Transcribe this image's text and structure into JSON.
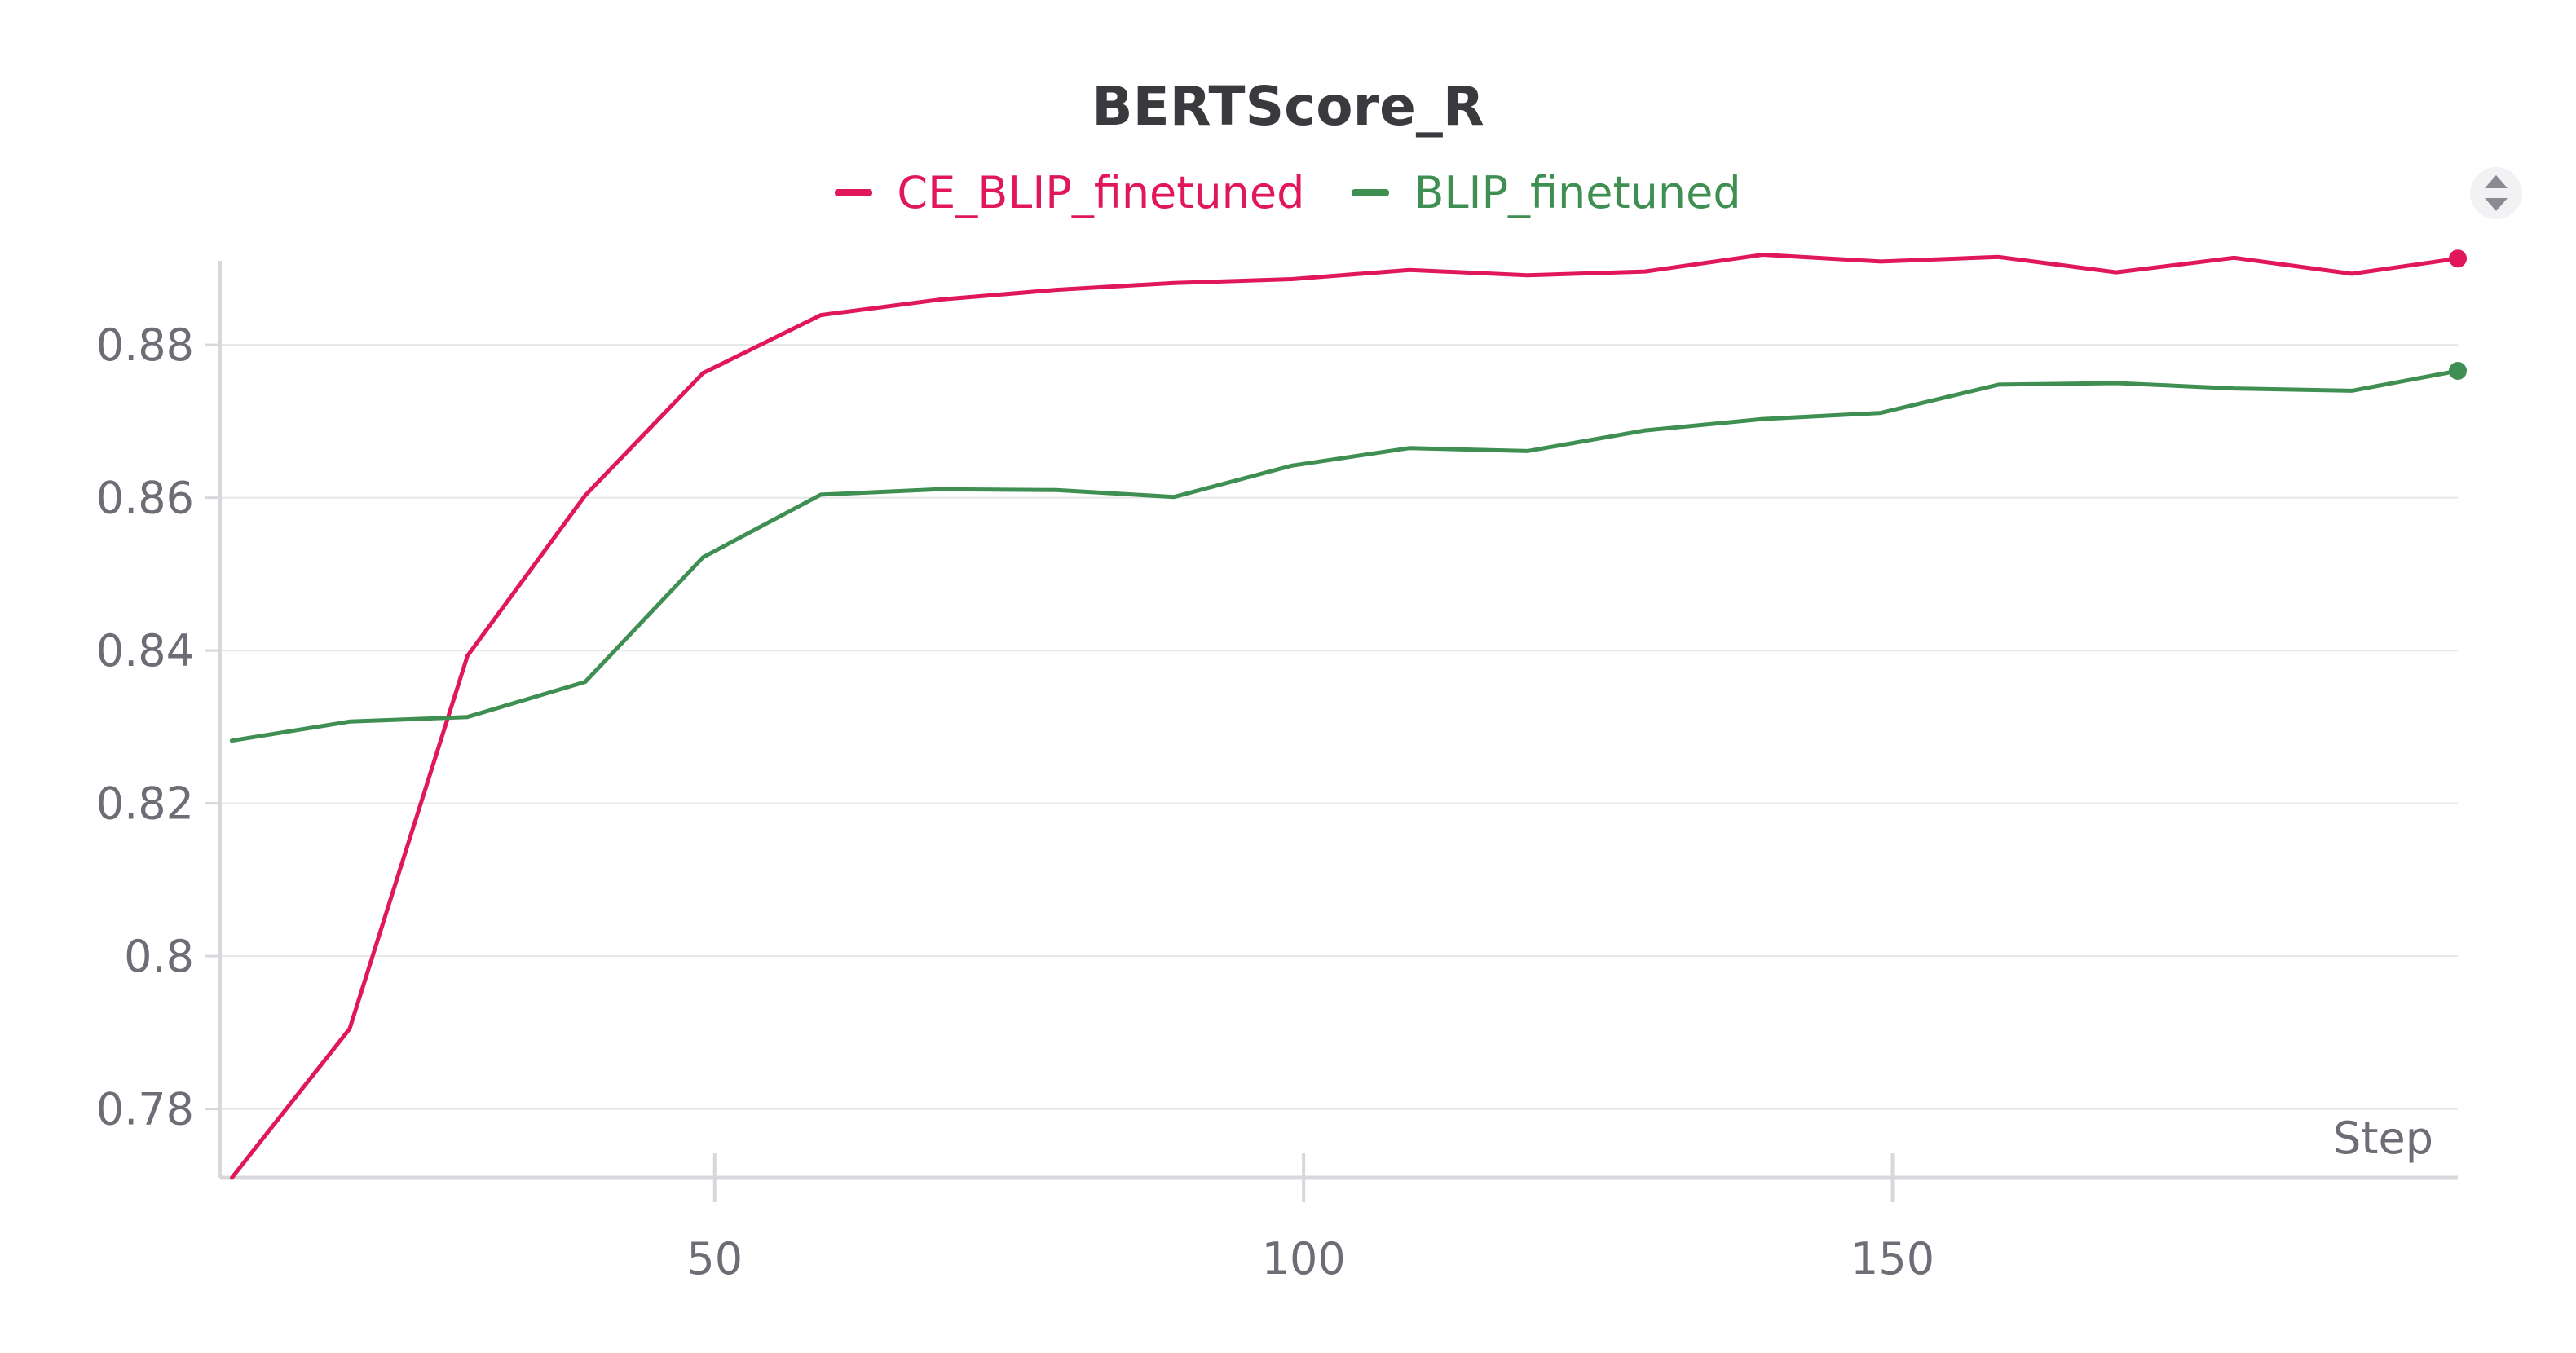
{
  "chart_data": {
    "type": "line",
    "title": "BERTScore_R",
    "xlabel": "Step",
    "ylabel": "",
    "xlim": [
      8,
      198
    ],
    "ylim": [
      0.771,
      0.891
    ],
    "x_ticks": [
      50,
      100,
      150
    ],
    "x_tick_labels": [
      "50",
      "100",
      "150"
    ],
    "y_ticks": [
      0.78,
      0.8,
      0.82,
      0.84,
      0.86,
      0.88
    ],
    "y_tick_labels": [
      "0.78",
      "0.8",
      "0.82",
      "0.84",
      "0.86",
      "0.88"
    ],
    "grid": true,
    "legend_position": "top-center",
    "x": [
      9,
      19,
      29,
      39,
      49,
      59,
      69,
      79,
      89,
      99,
      109,
      119,
      129,
      139,
      149,
      159,
      169,
      179,
      189,
      199
    ],
    "series": [
      {
        "name": "CE_BLIP_finetuned",
        "color": "#e0175a",
        "values": [
          0.771,
          0.7905,
          0.8393,
          0.8603,
          0.8763,
          0.8839,
          0.8859,
          0.8872,
          0.8881,
          0.8886,
          0.8898,
          0.8891,
          0.8896,
          0.8918,
          0.8909,
          0.8915,
          0.8895,
          0.8914,
          0.8893,
          0.8913
        ]
      },
      {
        "name": "BLIP_finetuned",
        "color": "#3f8f52",
        "values": [
          0.8282,
          0.8307,
          0.8313,
          0.8359,
          0.8522,
          0.8604,
          0.8611,
          0.861,
          0.8601,
          0.8642,
          0.8665,
          0.8661,
          0.8688,
          0.8703,
          0.8711,
          0.8748,
          0.875,
          0.8743,
          0.874,
          0.8766
        ]
      }
    ]
  },
  "ui": {
    "menu_icon": "sort-toggle-icon"
  }
}
